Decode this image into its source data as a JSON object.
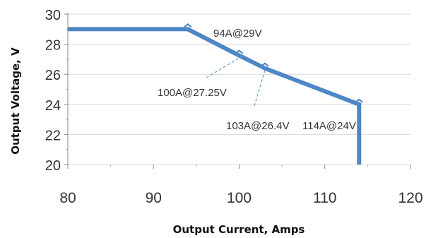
{
  "chart_data": {
    "type": "line",
    "xlabel": "Output Current, Amps",
    "ylabel": "Output Voltage, V",
    "xlim": [
      80,
      120
    ],
    "ylim": [
      20,
      30
    ],
    "x_ticks": [
      "80",
      "90",
      "100",
      "110",
      "120"
    ],
    "y_ticks": [
      "20",
      "22",
      "24",
      "26",
      "28",
      "30"
    ],
    "grid": "horizontal",
    "line_color": "#4e86c6",
    "series": [
      {
        "x": [
          80,
          94,
          100,
          103,
          114,
          114
        ],
        "y": [
          29,
          29,
          27.25,
          26.4,
          24,
          20
        ]
      }
    ],
    "annotations": [
      {
        "text": "94A@29V"
      },
      {
        "text": "100A@27.25V"
      },
      {
        "text": "103A@26.4V"
      },
      {
        "text": "114A@24V"
      }
    ]
  }
}
